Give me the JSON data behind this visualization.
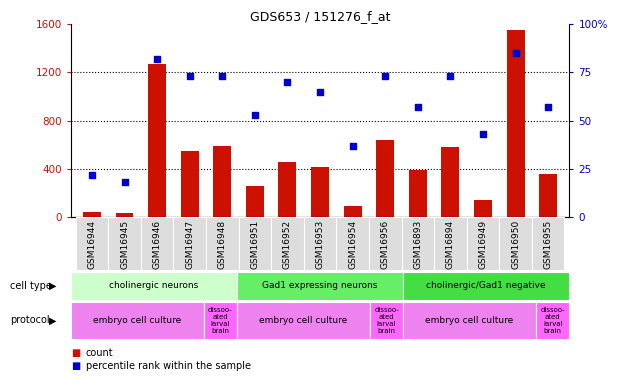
{
  "title": "GDS653 / 151276_f_at",
  "samples": [
    "GSM16944",
    "GSM16945",
    "GSM16946",
    "GSM16947",
    "GSM16948",
    "GSM16951",
    "GSM16952",
    "GSM16953",
    "GSM16954",
    "GSM16956",
    "GSM16893",
    "GSM16894",
    "GSM16949",
    "GSM16950",
    "GSM16955"
  ],
  "counts": [
    40,
    35,
    1270,
    550,
    590,
    260,
    460,
    415,
    90,
    635,
    390,
    580,
    145,
    1550,
    360
  ],
  "percentile": [
    22,
    18,
    82,
    73,
    73,
    53,
    70,
    65,
    37,
    73,
    57,
    73,
    43,
    85,
    57
  ],
  "bar_color": "#CC1100",
  "dot_color": "#0000CC",
  "left_ylim": [
    0,
    1600
  ],
  "right_ylim": [
    0,
    100
  ],
  "left_yticks": [
    0,
    400,
    800,
    1200,
    1600
  ],
  "right_yticks": [
    0,
    25,
    50,
    75,
    100
  ],
  "right_yticklabels": [
    "0",
    "25",
    "50",
    "75",
    "100%"
  ],
  "tick_label_color_left": "#CC1100",
  "tick_label_color_right": "#0000CC",
  "cell_type_groups": [
    {
      "label": "cholinergic neurons",
      "start": 0,
      "end": 5,
      "color": "#CCFFCC"
    },
    {
      "label": "Gad1 expressing neurons",
      "start": 5,
      "end": 10,
      "color": "#66EE66"
    },
    {
      "label": "cholinergic/Gad1 negative",
      "start": 10,
      "end": 15,
      "color": "#44DD44"
    }
  ],
  "protocol_groups": [
    {
      "label": "embryo cell culture",
      "start": 0,
      "end": 4,
      "color": "#EE82EE",
      "dissoc": false
    },
    {
      "label": "dissoo-\nated\nlarval\nbrain",
      "start": 4,
      "end": 5,
      "color": "#FF66FF",
      "dissoc": true
    },
    {
      "label": "embryo cell culture",
      "start": 5,
      "end": 9,
      "color": "#EE82EE",
      "dissoc": false
    },
    {
      "label": "dissoo-\nated\nlarval\nbrain",
      "start": 9,
      "end": 10,
      "color": "#FF66FF",
      "dissoc": true
    },
    {
      "label": "embryo cell culture",
      "start": 10,
      "end": 14,
      "color": "#EE82EE",
      "dissoc": false
    },
    {
      "label": "dissoo-\nated\nlarval\nbrain",
      "start": 14,
      "end": 15,
      "color": "#FF66FF",
      "dissoc": true
    }
  ]
}
